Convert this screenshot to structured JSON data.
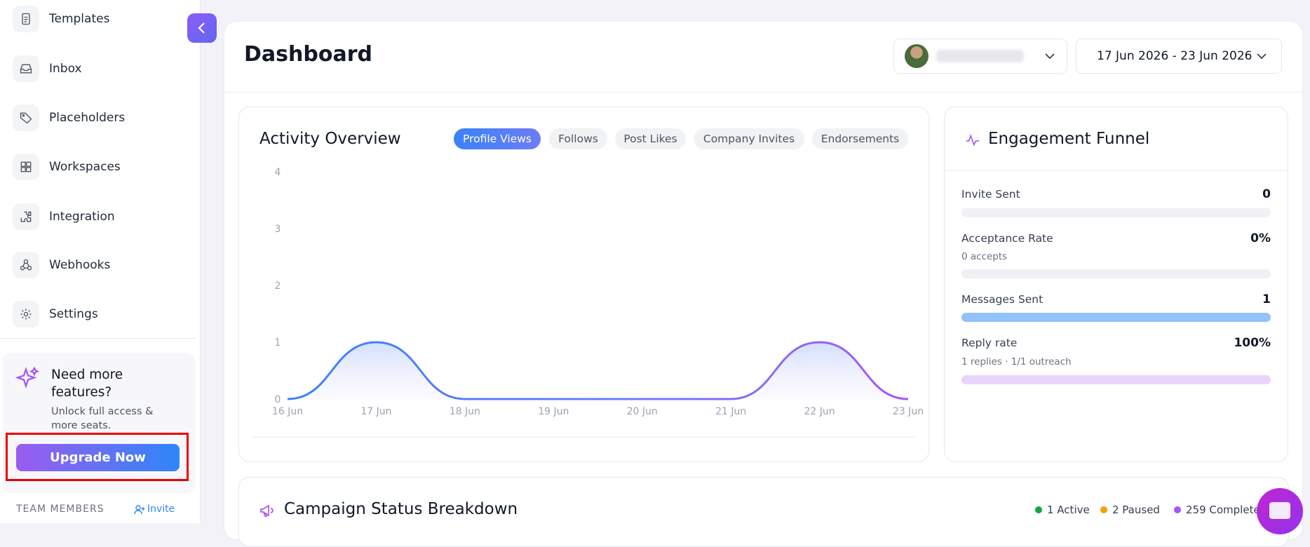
{
  "sidebar": {
    "items": [
      "Templates",
      "Inbox",
      "Placeholders",
      "Workspaces",
      "Integration",
      "Webhooks",
      "Settings"
    ],
    "promo": {
      "title": "Need more features?",
      "text": "Unlock full access & more seats.",
      "button": "Upgrade Now"
    },
    "team": {
      "label": "TEAM MEMBERS",
      "invite": "Invite"
    }
  },
  "header": {
    "title": "Dashboard",
    "date_range": "17 Jun 2026 - 23 Jun 2026"
  },
  "activity": {
    "title": "Activity Overview",
    "tabs": [
      "Profile Views",
      "Follows",
      "Post Likes",
      "Company Invites",
      "Endorsements"
    ],
    "chart": {
      "type": "line",
      "x": [
        "16 Jun",
        "17 Jun",
        "18 Jun",
        "19 Jun",
        "20 Jun",
        "21 Jun",
        "22 Jun",
        "23 Jun"
      ],
      "values": [
        0,
        1,
        0,
        0,
        0,
        0,
        1,
        0
      ],
      "ylim": [
        0,
        4
      ],
      "yticks": [
        0,
        1,
        2,
        3,
        4
      ]
    }
  },
  "funnel": {
    "title": "Engagement Funnel",
    "rows": [
      {
        "label": "Invite Sent",
        "value": "0"
      },
      {
        "label": "Acceptance Rate",
        "value": "0%",
        "sub": "0 accepts"
      },
      {
        "label": "Messages Sent",
        "value": "1"
      },
      {
        "label": "Reply rate",
        "value": "100%",
        "sub": "1 replies · 1/1 outreach"
      }
    ]
  },
  "campaign": {
    "title": "Campaign Status Breakdown",
    "legend": [
      "1 Active",
      "2 Paused",
      "259 Complete"
    ]
  }
}
